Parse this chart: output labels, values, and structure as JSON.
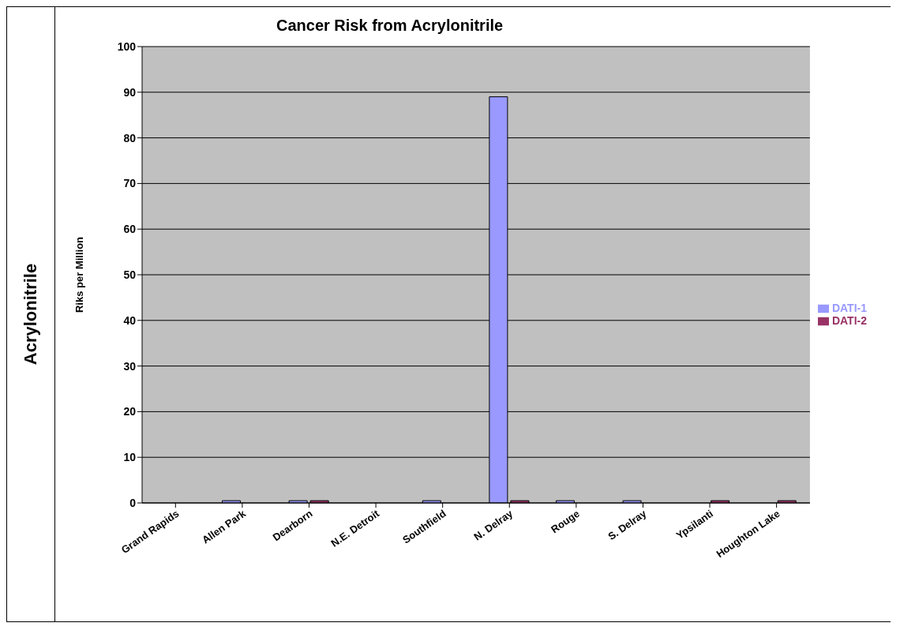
{
  "chart_data": {
    "type": "bar",
    "title": "Cancer Risk from Acrylonitrile",
    "ylabel": "Riks per Million",
    "annotations": [
      "Acrylonitrile"
    ],
    "categories": [
      "Grand Rapids",
      "Allen  Park",
      "Dearborn",
      "N.E. Detroit",
      "Southfield",
      "N. Delray",
      "Rouge",
      "S. Delray",
      "Ypsilanti",
      "Houghton  Lake"
    ],
    "series": [
      {
        "name": "DATI-1",
        "color": "#9999ff",
        "values": [
          null,
          0.5,
          0.5,
          null,
          0.5,
          89,
          0.5,
          0.5,
          null,
          null
        ]
      },
      {
        "name": "DATI-2",
        "color": "#993366",
        "values": [
          null,
          null,
          0.5,
          null,
          null,
          0.5,
          null,
          null,
          0.5,
          0.5
        ]
      }
    ],
    "ylim": [
      0,
      100
    ],
    "yticks": [
      0,
      10,
      20,
      30,
      40,
      50,
      60,
      70,
      80,
      90,
      100
    ],
    "grid": "y",
    "legend": "right"
  }
}
